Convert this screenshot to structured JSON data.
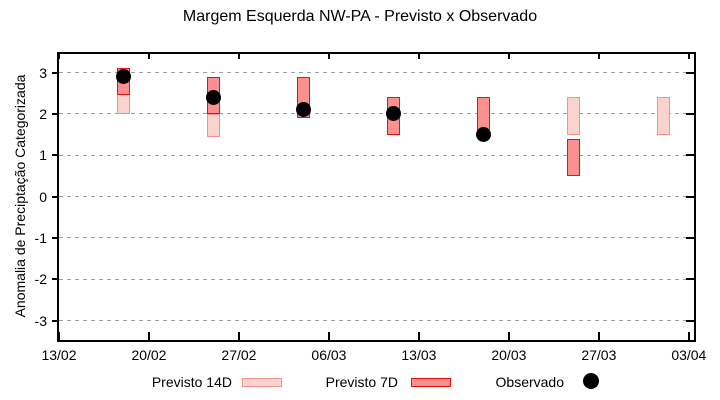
{
  "title": "Margem Esquerda NW-PA - Previsto x Observado",
  "ylabel": "Anomalia de Preciptação Categorizada",
  "legend": [
    {
      "label": "Previsto 14D",
      "swatch": "box",
      "fill": "#fad3cf",
      "border": "#f0938c"
    },
    {
      "label": "Previsto 7D",
      "swatch": "box",
      "fill": "#fa9090",
      "border": "#e81111"
    },
    {
      "label": "Observado",
      "swatch": "dot",
      "fill": "#000000"
    }
  ],
  "colors": {
    "previsto_14d_fill": "#fad3cf",
    "previsto_14d_border": "#f0938c",
    "previsto_7d_fill": "#fa9090",
    "previsto_7d_border": "#e81111",
    "observado": "#000000",
    "grid": "#9e9e9e",
    "axis": "#000000"
  },
  "chart_data": {
    "type": "bar",
    "subtype": "range-bars-with-scatter-overlay",
    "title": "Margem Esquerda NW-PA - Previsto x Observado",
    "xlabel": "",
    "ylabel": "Anomalia de Preciptação Categorizada",
    "ylim": [
      -3.5,
      3.5
    ],
    "yticks": [
      3,
      2,
      1,
      0,
      -1,
      -2,
      -3
    ],
    "xticks": [
      "13/02",
      "20/02",
      "27/02",
      "06/03",
      "13/03",
      "20/03",
      "27/03",
      "03/04"
    ],
    "grid": "dashed-horizontal",
    "legend_position": "bottom-outside",
    "x_days_span": 49.4,
    "series_names": [
      "Previsto 14D",
      "Previsto 7D",
      "Observado"
    ],
    "points": [
      {
        "date": "18/02",
        "day": 5,
        "previsto_14d": [
          2.0,
          2.5
        ],
        "previsto_7d": [
          2.45,
          3.1
        ],
        "observado": 2.9
      },
      {
        "date": "25/02",
        "day": 12,
        "previsto_14d": [
          1.45,
          2.0
        ],
        "previsto_7d": [
          2.0,
          2.9
        ],
        "observado": 2.4
      },
      {
        "date": "04/03",
        "day": 19,
        "previsto_14d": null,
        "previsto_7d": [
          1.9,
          2.9
        ],
        "observado": 2.1
      },
      {
        "date": "11/03",
        "day": 26,
        "previsto_14d": null,
        "previsto_7d": [
          1.5,
          2.4
        ],
        "observado": 2.0
      },
      {
        "date": "18/03",
        "day": 33,
        "previsto_14d": null,
        "previsto_7d": [
          1.6,
          2.4
        ],
        "observado": 1.5
      },
      {
        "date": "25/03",
        "day": 40,
        "previsto_14d": [
          1.5,
          2.4
        ],
        "previsto_7d": [
          0.5,
          1.4
        ],
        "observado": null
      },
      {
        "date": "01/04",
        "day": 47,
        "previsto_14d": [
          1.5,
          2.4
        ],
        "previsto_7d": null,
        "observado": null
      }
    ]
  }
}
